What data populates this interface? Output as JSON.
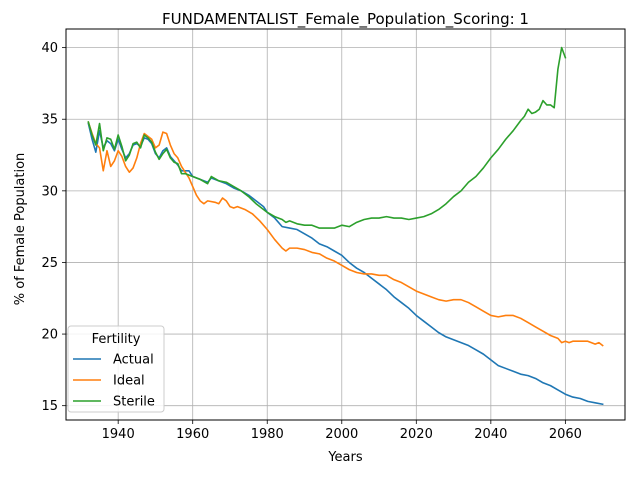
{
  "chart_data": {
    "type": "line",
    "title": "FUNDAMENTALIST_Female_Population_Scoring: 1",
    "xlabel": "Years",
    "ylabel": "% of Female Population",
    "xlim": [
      1926,
      2076
    ],
    "ylim": [
      14,
      41.3
    ],
    "xticks": [
      1940,
      1960,
      1980,
      2000,
      2020,
      2040,
      2060
    ],
    "yticks": [
      15,
      20,
      25,
      30,
      35,
      40
    ],
    "grid": true,
    "legend": {
      "title": "Fertility",
      "position": "lower-left"
    },
    "series": [
      {
        "name": "Actual",
        "color": "#1f77b4",
        "points": [
          [
            1932,
            34.7
          ],
          [
            1933,
            33.6
          ],
          [
            1934,
            32.7
          ],
          [
            1935,
            34.2
          ],
          [
            1936,
            33.0
          ],
          [
            1937,
            33.5
          ],
          [
            1938,
            33.3
          ],
          [
            1939,
            32.8
          ],
          [
            1940,
            33.6
          ],
          [
            1941,
            32.9
          ],
          [
            1942,
            32.3
          ],
          [
            1943,
            32.6
          ],
          [
            1944,
            33.2
          ],
          [
            1945,
            33.3
          ],
          [
            1946,
            33.1
          ],
          [
            1947,
            33.7
          ],
          [
            1948,
            33.6
          ],
          [
            1949,
            33.3
          ],
          [
            1950,
            32.6
          ],
          [
            1951,
            32.3
          ],
          [
            1952,
            32.8
          ],
          [
            1953,
            33.0
          ],
          [
            1954,
            32.4
          ],
          [
            1955,
            32.1
          ],
          [
            1956,
            31.8
          ],
          [
            1957,
            31.4
          ],
          [
            1958,
            31.4
          ],
          [
            1959,
            31.4
          ],
          [
            1960,
            31.0
          ],
          [
            1962,
            30.8
          ],
          [
            1964,
            30.6
          ],
          [
            1965,
            30.9
          ],
          [
            1967,
            30.7
          ],
          [
            1969,
            30.5
          ],
          [
            1971,
            30.2
          ],
          [
            1973,
            30.0
          ],
          [
            1975,
            29.7
          ],
          [
            1977,
            29.3
          ],
          [
            1979,
            28.9
          ],
          [
            1980,
            28.5
          ],
          [
            1982,
            28.1
          ],
          [
            1984,
            27.5
          ],
          [
            1986,
            27.4
          ],
          [
            1988,
            27.3
          ],
          [
            1990,
            27.0
          ],
          [
            1992,
            26.7
          ],
          [
            1994,
            26.3
          ],
          [
            1996,
            26.1
          ],
          [
            1998,
            25.8
          ],
          [
            2000,
            25.5
          ],
          [
            2002,
            25.0
          ],
          [
            2004,
            24.6
          ],
          [
            2006,
            24.3
          ],
          [
            2008,
            23.9
          ],
          [
            2010,
            23.5
          ],
          [
            2012,
            23.1
          ],
          [
            2014,
            22.6
          ],
          [
            2016,
            22.2
          ],
          [
            2018,
            21.8
          ],
          [
            2020,
            21.3
          ],
          [
            2022,
            20.9
          ],
          [
            2024,
            20.5
          ],
          [
            2026,
            20.1
          ],
          [
            2028,
            19.8
          ],
          [
            2030,
            19.6
          ],
          [
            2032,
            19.4
          ],
          [
            2034,
            19.2
          ],
          [
            2036,
            18.9
          ],
          [
            2038,
            18.6
          ],
          [
            2040,
            18.2
          ],
          [
            2042,
            17.8
          ],
          [
            2044,
            17.6
          ],
          [
            2046,
            17.4
          ],
          [
            2048,
            17.2
          ],
          [
            2050,
            17.1
          ],
          [
            2052,
            16.9
          ],
          [
            2054,
            16.6
          ],
          [
            2056,
            16.4
          ],
          [
            2058,
            16.1
          ],
          [
            2060,
            15.8
          ],
          [
            2062,
            15.6
          ],
          [
            2064,
            15.5
          ],
          [
            2066,
            15.3
          ],
          [
            2068,
            15.2
          ],
          [
            2070,
            15.1
          ]
        ]
      },
      {
        "name": "Ideal",
        "color": "#ff7f0e",
        "points": [
          [
            1932,
            34.8
          ],
          [
            1933,
            34.0
          ],
          [
            1934,
            33.3
          ],
          [
            1935,
            33.0
          ],
          [
            1936,
            31.4
          ],
          [
            1937,
            32.8
          ],
          [
            1938,
            31.7
          ],
          [
            1939,
            32.1
          ],
          [
            1940,
            32.8
          ],
          [
            1941,
            32.4
          ],
          [
            1942,
            31.7
          ],
          [
            1943,
            31.3
          ],
          [
            1944,
            31.6
          ],
          [
            1945,
            32.3
          ],
          [
            1946,
            33.3
          ],
          [
            1947,
            34.0
          ],
          [
            1948,
            33.8
          ],
          [
            1949,
            33.6
          ],
          [
            1950,
            33.0
          ],
          [
            1951,
            33.2
          ],
          [
            1952,
            34.1
          ],
          [
            1953,
            34.0
          ],
          [
            1954,
            33.2
          ],
          [
            1955,
            32.6
          ],
          [
            1956,
            32.3
          ],
          [
            1957,
            31.7
          ],
          [
            1958,
            31.3
          ],
          [
            1959,
            30.9
          ],
          [
            1960,
            30.3
          ],
          [
            1961,
            29.7
          ],
          [
            1962,
            29.3
          ],
          [
            1963,
            29.1
          ],
          [
            1964,
            29.3
          ],
          [
            1966,
            29.2
          ],
          [
            1967,
            29.1
          ],
          [
            1968,
            29.5
          ],
          [
            1969,
            29.3
          ],
          [
            1970,
            28.9
          ],
          [
            1971,
            28.8
          ],
          [
            1972,
            28.9
          ],
          [
            1974,
            28.7
          ],
          [
            1976,
            28.4
          ],
          [
            1978,
            27.9
          ],
          [
            1980,
            27.3
          ],
          [
            1982,
            26.6
          ],
          [
            1984,
            26.0
          ],
          [
            1985,
            25.8
          ],
          [
            1986,
            26.0
          ],
          [
            1988,
            26.0
          ],
          [
            1990,
            25.9
          ],
          [
            1992,
            25.7
          ],
          [
            1994,
            25.6
          ],
          [
            1996,
            25.3
          ],
          [
            1998,
            25.1
          ],
          [
            2000,
            24.8
          ],
          [
            2002,
            24.5
          ],
          [
            2004,
            24.3
          ],
          [
            2006,
            24.2
          ],
          [
            2008,
            24.2
          ],
          [
            2010,
            24.1
          ],
          [
            2012,
            24.1
          ],
          [
            2014,
            23.8
          ],
          [
            2016,
            23.6
          ],
          [
            2018,
            23.3
          ],
          [
            2020,
            23.0
          ],
          [
            2022,
            22.8
          ],
          [
            2024,
            22.6
          ],
          [
            2026,
            22.4
          ],
          [
            2028,
            22.3
          ],
          [
            2030,
            22.4
          ],
          [
            2032,
            22.4
          ],
          [
            2034,
            22.2
          ],
          [
            2036,
            21.9
          ],
          [
            2038,
            21.6
          ],
          [
            2040,
            21.3
          ],
          [
            2042,
            21.2
          ],
          [
            2044,
            21.3
          ],
          [
            2046,
            21.3
          ],
          [
            2048,
            21.1
          ],
          [
            2050,
            20.8
          ],
          [
            2052,
            20.5
          ],
          [
            2054,
            20.2
          ],
          [
            2056,
            19.9
          ],
          [
            2058,
            19.7
          ],
          [
            2059,
            19.4
          ],
          [
            2060,
            19.5
          ],
          [
            2061,
            19.4
          ],
          [
            2062,
            19.5
          ],
          [
            2064,
            19.5
          ],
          [
            2066,
            19.5
          ],
          [
            2068,
            19.3
          ],
          [
            2069,
            19.4
          ],
          [
            2070,
            19.2
          ]
        ]
      },
      {
        "name": "Sterile",
        "color": "#2ca02c",
        "points": [
          [
            1932,
            34.8
          ],
          [
            1933,
            33.9
          ],
          [
            1934,
            33.2
          ],
          [
            1935,
            34.7
          ],
          [
            1936,
            32.8
          ],
          [
            1937,
            33.7
          ],
          [
            1938,
            33.6
          ],
          [
            1939,
            32.9
          ],
          [
            1940,
            33.9
          ],
          [
            1941,
            33.1
          ],
          [
            1942,
            32.1
          ],
          [
            1943,
            32.5
          ],
          [
            1944,
            33.3
          ],
          [
            1945,
            33.4
          ],
          [
            1946,
            33.0
          ],
          [
            1947,
            33.9
          ],
          [
            1948,
            33.7
          ],
          [
            1949,
            33.4
          ],
          [
            1950,
            32.7
          ],
          [
            1951,
            32.2
          ],
          [
            1952,
            32.6
          ],
          [
            1953,
            32.9
          ],
          [
            1954,
            32.3
          ],
          [
            1955,
            32.0
          ],
          [
            1956,
            31.9
          ],
          [
            1957,
            31.2
          ],
          [
            1958,
            31.2
          ],
          [
            1959,
            31.1
          ],
          [
            1960,
            31.0
          ],
          [
            1962,
            30.8
          ],
          [
            1964,
            30.5
          ],
          [
            1965,
            31.0
          ],
          [
            1967,
            30.7
          ],
          [
            1969,
            30.6
          ],
          [
            1971,
            30.3
          ],
          [
            1973,
            30.0
          ],
          [
            1975,
            29.6
          ],
          [
            1977,
            29.1
          ],
          [
            1979,
            28.7
          ],
          [
            1980,
            28.5
          ],
          [
            1982,
            28.2
          ],
          [
            1984,
            28.0
          ],
          [
            1985,
            27.8
          ],
          [
            1986,
            27.9
          ],
          [
            1988,
            27.7
          ],
          [
            1990,
            27.6
          ],
          [
            1992,
            27.6
          ],
          [
            1994,
            27.4
          ],
          [
            1996,
            27.4
          ],
          [
            1998,
            27.4
          ],
          [
            2000,
            27.6
          ],
          [
            2002,
            27.5
          ],
          [
            2004,
            27.8
          ],
          [
            2006,
            28.0
          ],
          [
            2008,
            28.1
          ],
          [
            2010,
            28.1
          ],
          [
            2012,
            28.2
          ],
          [
            2014,
            28.1
          ],
          [
            2016,
            28.1
          ],
          [
            2018,
            28.0
          ],
          [
            2020,
            28.1
          ],
          [
            2022,
            28.2
          ],
          [
            2024,
            28.4
          ],
          [
            2026,
            28.7
          ],
          [
            2028,
            29.1
          ],
          [
            2030,
            29.6
          ],
          [
            2032,
            30.0
          ],
          [
            2034,
            30.6
          ],
          [
            2036,
            31.0
          ],
          [
            2038,
            31.6
          ],
          [
            2040,
            32.3
          ],
          [
            2042,
            32.9
          ],
          [
            2044,
            33.6
          ],
          [
            2046,
            34.2
          ],
          [
            2048,
            34.9
          ],
          [
            2049,
            35.2
          ],
          [
            2050,
            35.7
          ],
          [
            2051,
            35.4
          ],
          [
            2052,
            35.5
          ],
          [
            2053,
            35.7
          ],
          [
            2054,
            36.3
          ],
          [
            2055,
            36.0
          ],
          [
            2056,
            36.0
          ],
          [
            2057,
            35.8
          ],
          [
            2058,
            38.5
          ],
          [
            2059,
            40.0
          ],
          [
            2060,
            39.3
          ]
        ]
      }
    ]
  }
}
